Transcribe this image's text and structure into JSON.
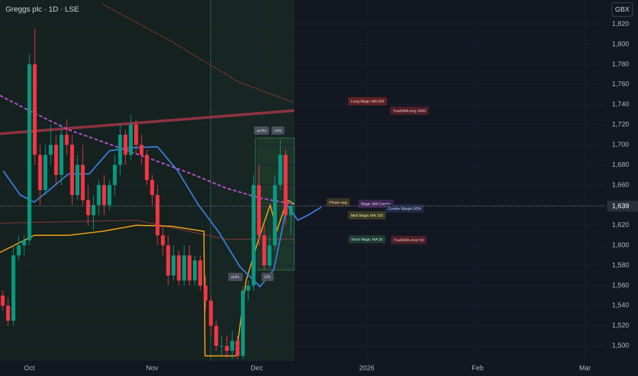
{
  "header": {
    "title": "Greggs plc · 1D · LSE",
    "currency": "GBX"
  },
  "chart_data": {
    "type": "candlestick",
    "x": [
      -5,
      -4,
      -3,
      -2,
      -1,
      0,
      1,
      2,
      3,
      4,
      5,
      6,
      7,
      8,
      9,
      10,
      11,
      12,
      13,
      14,
      15,
      16,
      17,
      18,
      19,
      20,
      21,
      22,
      23,
      24,
      25,
      26,
      27,
      28,
      29,
      30,
      31,
      32,
      33,
      34,
      35,
      36,
      37,
      38,
      39,
      40,
      41,
      42,
      43,
      44,
      45,
      46,
      47,
      48,
      49
    ],
    "open": [
      1550,
      1540,
      1525,
      1590,
      1600,
      1605,
      1780,
      1690,
      1655,
      1690,
      1700,
      1670,
      1710,
      1700,
      1650,
      1680,
      1645,
      1630,
      1640,
      1660,
      1640,
      1660,
      1680,
      1710,
      1690,
      1720,
      1700,
      1690,
      1665,
      1650,
      1610,
      1600,
      1570,
      1590,
      1565,
      1590,
      1565,
      1585,
      1560,
      1545,
      1520,
      1500,
      1500,
      1495,
      1505,
      1490,
      1555,
      1560,
      1660,
      1610,
      1580,
      1600,
      1660,
      1690,
      1630
    ],
    "high": [
      1555,
      1548,
      1600,
      1610,
      1610,
      1790,
      1815,
      1700,
      1700,
      1720,
      1710,
      1720,
      1725,
      1710,
      1690,
      1700,
      1660,
      1650,
      1665,
      1670,
      1665,
      1690,
      1720,
      1715,
      1730,
      1725,
      1710,
      1695,
      1670,
      1660,
      1620,
      1610,
      1600,
      1595,
      1600,
      1600,
      1590,
      1590,
      1570,
      1550,
      1525,
      1510,
      1510,
      1515,
      1510,
      1560,
      1565,
      1670,
      1680,
      1620,
      1610,
      1670,
      1705,
      1695,
      1645
    ],
    "low": [
      1535,
      1520,
      1520,
      1585,
      1590,
      1600,
      1680,
      1640,
      1650,
      1680,
      1660,
      1660,
      1690,
      1640,
      1645,
      1640,
      1620,
      1615,
      1630,
      1630,
      1635,
      1650,
      1670,
      1680,
      1685,
      1690,
      1680,
      1660,
      1640,
      1600,
      1590,
      1560,
      1565,
      1560,
      1560,
      1560,
      1560,
      1555,
      1535,
      1510,
      1495,
      1490,
      1488,
      1487,
      1487,
      1487,
      1545,
      1555,
      1600,
      1575,
      1578,
      1595,
      1655,
      1620,
      1610
    ],
    "close": [
      1540,
      1525,
      1590,
      1600,
      1605,
      1780,
      1690,
      1655,
      1690,
      1700,
      1670,
      1710,
      1700,
      1650,
      1680,
      1645,
      1630,
      1640,
      1660,
      1640,
      1660,
      1680,
      1710,
      1690,
      1720,
      1700,
      1690,
      1665,
      1650,
      1610,
      1600,
      1570,
      1590,
      1565,
      1590,
      1565,
      1585,
      1560,
      1545,
      1520,
      1500,
      1500,
      1495,
      1505,
      1490,
      1555,
      1560,
      1660,
      1610,
      1580,
      1600,
      1660,
      1690,
      1630,
      1639
    ],
    "up_color": "#089981",
    "down_color": "#f23645",
    "xlim": [
      -5.51,
      108
    ],
    "xticks": [
      {
        "value": 0,
        "label": "Oct"
      },
      {
        "value": 23,
        "label": "Nov"
      },
      {
        "value": 42.6,
        "label": "Dec"
      },
      {
        "value": 63.2,
        "label": "2026"
      },
      {
        "value": 84,
        "label": "Feb"
      },
      {
        "value": 104.1,
        "label": "Mar"
      }
    ],
    "ylim": [
      1485,
      1844
    ],
    "yticks": [
      {
        "value": 1500,
        "label": "1,500"
      },
      {
        "value": 1520,
        "label": "1,520"
      },
      {
        "value": 1540,
        "label": "1,540"
      },
      {
        "value": 1560,
        "label": "1,560"
      },
      {
        "value": 1580,
        "label": "1,580"
      },
      {
        "value": 1600,
        "label": "1,600"
      },
      {
        "value": 1620,
        "label": "1,620"
      },
      {
        "value": 1640,
        "label": "1,640"
      },
      {
        "value": 1660,
        "label": "1,660"
      },
      {
        "value": 1680,
        "label": "1,680"
      },
      {
        "value": 1700,
        "label": "1,700"
      },
      {
        "value": 1720,
        "label": "1,720"
      },
      {
        "value": 1740,
        "label": "1,740"
      },
      {
        "value": 1760,
        "label": "1,760"
      },
      {
        "value": 1780,
        "label": "1,780"
      },
      {
        "value": 1800,
        "label": "1,800"
      },
      {
        "value": 1820,
        "label": "1,820"
      }
    ],
    "grid": true,
    "last_price": {
      "value": 1639,
      "label": "1,639"
    },
    "lines": [
      {
        "color": "#8b3a3a",
        "style": "solid",
        "x": [
          -5.5,
          20.1,
          36.8,
          49.6
        ],
        "values": [
          1622,
          1625,
          1606,
          1606
        ]
      },
      {
        "color": "#b5384a",
        "style": "solid",
        "x": [
          -5.5,
          49.6
        ],
        "values": [
          1711,
          1734
        ]
      },
      {
        "color": "#d9482f",
        "style": "dotted",
        "x": [
          13.7,
          26.5,
          39.4,
          49.6
        ],
        "values": [
          1840,
          1803,
          1762,
          1742
        ]
      },
      {
        "color": "#c04fd8",
        "style": "dashed",
        "x": [
          -5.5,
          -0.4,
          7.3,
          20.1,
          30.4,
          36.8,
          43.2,
          49.6
        ],
        "values": [
          1749,
          1735,
          1715,
          1691,
          1671,
          1657,
          1647,
          1641
        ]
      },
      {
        "color": "#f7a21b",
        "style": "solid",
        "x": [
          -5.5,
          0.9,
          7.3,
          13.7,
          20.1,
          26.5,
          32.7,
          32.9,
          38.7,
          40.6,
          42.6,
          43.8,
          45.1,
          46.4,
          48.3,
          49.6
        ],
        "values": [
          1593,
          1610,
          1610,
          1614,
          1620,
          1619,
          1614,
          1490,
          1490,
          1565,
          1600,
          1620,
          1640,
          1615,
          1645,
          1641
        ]
      },
      {
        "color": "#3a7bd5",
        "style": "solid",
        "x": [
          -4.9,
          -1.7,
          0.9,
          3.5,
          7.3,
          11.2,
          15,
          18.8,
          24,
          27.8,
          31.7,
          35.5,
          39.4,
          43.2,
          45.8,
          48.3,
          50.3,
          52.2,
          54.7
        ],
        "values": [
          1674,
          1650,
          1643,
          1654,
          1671,
          1671,
          1694,
          1697,
          1698,
          1674,
          1640,
          1613,
          1579,
          1559,
          1576,
          1640,
          1625,
          1630,
          1638
        ]
      }
    ],
    "annotations": [
      "Long Magic MA 200",
      "TradSMA long 3000",
      "oLPH",
      "LPH",
      "oLPL",
      "LPL",
      "Phase avg",
      "Magic MA Combo",
      "Combo Margin 50%",
      "Med Magic MA 100",
      "Short Magic MA 50",
      "TradSMA short 50"
    ]
  }
}
